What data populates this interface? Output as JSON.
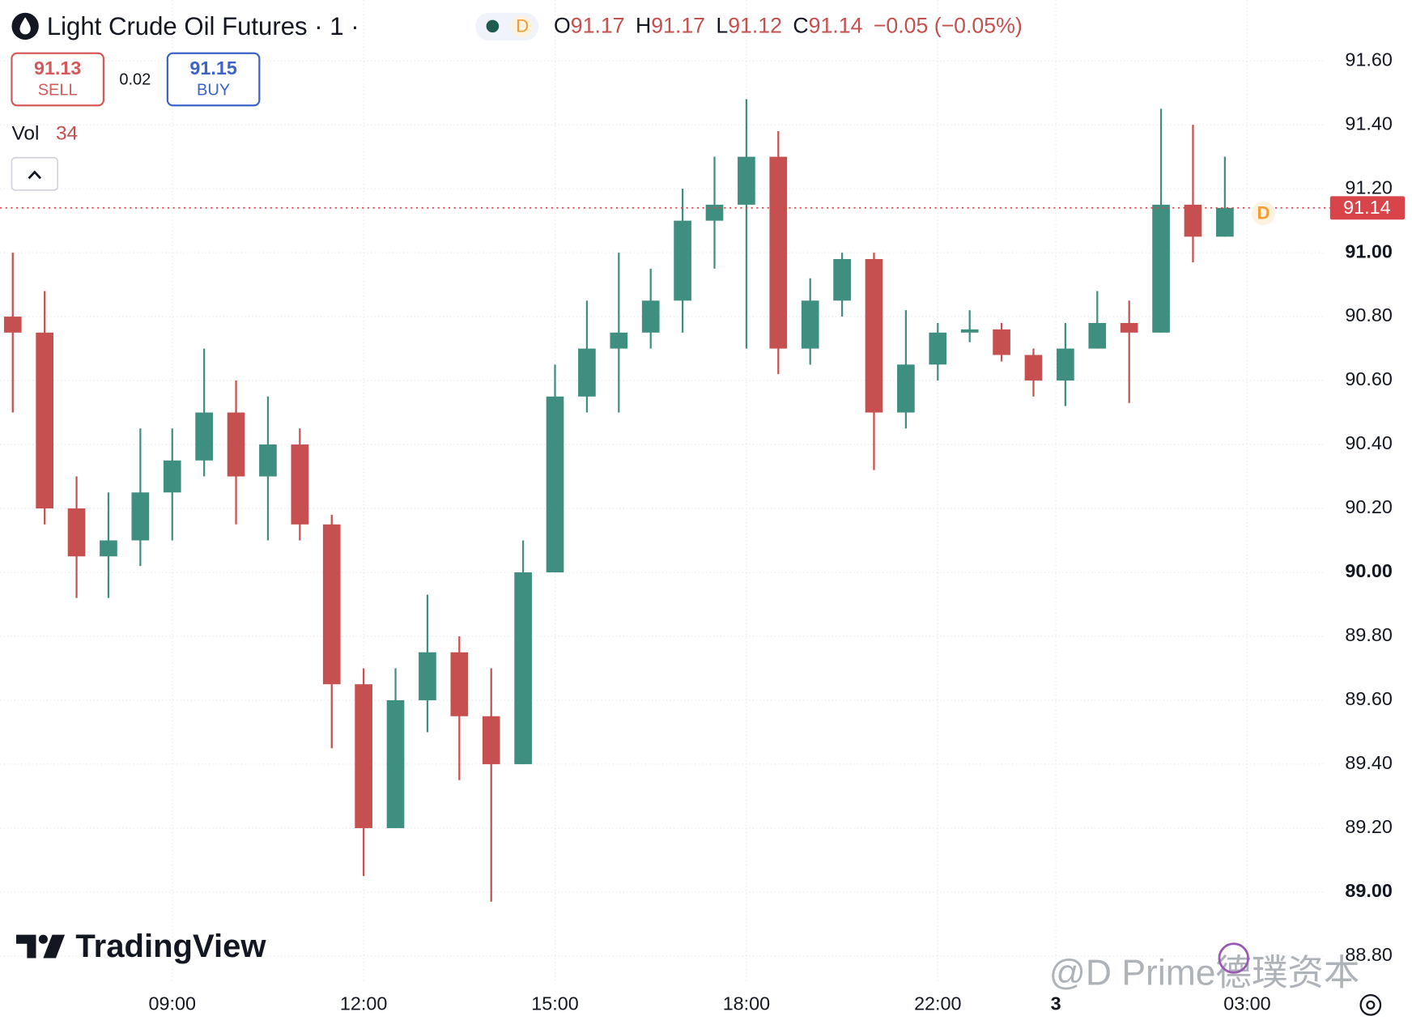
{
  "header": {
    "symbol": "Light Crude Oil Futures · 1 ·",
    "interval_badge": "D",
    "ohlc": [
      {
        "label": "O",
        "value": "91.17"
      },
      {
        "label": "H",
        "value": "91.17"
      },
      {
        "label": "L",
        "value": "91.12"
      },
      {
        "label": "C",
        "value": "91.14"
      }
    ],
    "change": "−0.05 (−0.05%)"
  },
  "trade": {
    "sell_price": "91.13",
    "sell_label": "SELL",
    "spread": "0.02",
    "buy_price": "91.15",
    "buy_label": "BUY"
  },
  "volume": {
    "label": "Vol",
    "value": "34"
  },
  "watermark": "TradingView",
  "credit": "@D Prime德璞资本",
  "chart_data": {
    "type": "candlestick",
    "up_color": "#3f8f80",
    "down_color": "#c6504f",
    "grid": true,
    "last_price": 91.14,
    "last_price_color": "#d9434a",
    "xlim": [
      -0.4,
      41.1
    ],
    "xticks": [
      {
        "value": 5,
        "label": "09:00"
      },
      {
        "value": 11,
        "label": "12:00"
      },
      {
        "value": 17,
        "label": "15:00"
      },
      {
        "value": 23,
        "label": "18:00"
      },
      {
        "value": 29,
        "label": "22:00"
      },
      {
        "value": 32.7,
        "label": "3"
      },
      {
        "value": 38.7,
        "label": "03:00"
      }
    ],
    "ylim": [
      88.72,
      91.79
    ],
    "yticks": [
      {
        "value": 88.8,
        "label": "88.80"
      },
      {
        "value": 89,
        "label": "89.00"
      },
      {
        "value": 89.2,
        "label": "89.20"
      },
      {
        "value": 89.4,
        "label": "89.40"
      },
      {
        "value": 89.6,
        "label": "89.60"
      },
      {
        "value": 89.8,
        "label": "89.80"
      },
      {
        "value": 90,
        "label": "90.00"
      },
      {
        "value": 90.2,
        "label": "90.20"
      },
      {
        "value": 90.4,
        "label": "90.40"
      },
      {
        "value": 90.6,
        "label": "90.60"
      },
      {
        "value": 90.8,
        "label": "90.80"
      },
      {
        "value": 91,
        "label": "91.00"
      },
      {
        "value": 91.2,
        "label": "91.20"
      },
      {
        "value": 91.4,
        "label": "91.40"
      },
      {
        "value": 91.6,
        "label": "91.60"
      }
    ],
    "open": [
      90.8,
      90.75,
      90.2,
      90.05,
      90.1,
      90.25,
      90.35,
      90.5,
      90.3,
      90.4,
      90.15,
      89.65,
      89.2,
      89.6,
      89.75,
      89.55,
      89.4,
      90.0,
      90.55,
      90.7,
      90.75,
      90.85,
      91.1,
      91.15,
      91.3,
      90.7,
      90.85,
      90.98,
      90.5,
      90.65,
      90.75,
      90.76,
      90.68,
      90.6,
      90.7,
      90.78,
      90.75,
      91.15,
      91.05
    ],
    "high": [
      91.0,
      90.88,
      90.3,
      90.25,
      90.45,
      90.45,
      90.7,
      90.6,
      90.55,
      90.45,
      90.18,
      89.7,
      89.7,
      89.93,
      89.8,
      89.7,
      90.1,
      90.65,
      90.85,
      91.0,
      90.95,
      91.2,
      91.3,
      91.48,
      91.38,
      90.92,
      91.0,
      91.0,
      90.82,
      90.78,
      90.82,
      90.78,
      90.7,
      90.78,
      90.88,
      90.85,
      91.45,
      91.4,
      91.3
    ],
    "low": [
      90.5,
      90.15,
      89.92,
      89.92,
      90.02,
      90.1,
      90.3,
      90.15,
      90.1,
      90.1,
      89.45,
      89.05,
      89.2,
      89.5,
      89.35,
      88.97,
      89.4,
      90.0,
      90.5,
      90.5,
      90.7,
      90.75,
      90.95,
      90.7,
      90.62,
      90.65,
      90.8,
      90.32,
      90.45,
      90.6,
      90.72,
      90.66,
      90.55,
      90.52,
      90.7,
      90.53,
      90.75,
      90.97,
      91.05
    ],
    "close": [
      90.75,
      90.2,
      90.05,
      90.1,
      90.25,
      90.35,
      90.5,
      90.3,
      90.4,
      90.15,
      89.65,
      89.2,
      89.6,
      89.75,
      89.55,
      89.4,
      90.0,
      90.55,
      90.7,
      90.75,
      90.85,
      91.1,
      91.15,
      91.3,
      90.7,
      90.85,
      90.98,
      90.5,
      90.65,
      90.75,
      90.76,
      90.68,
      90.6,
      90.7,
      90.78,
      90.75,
      91.15,
      91.05,
      91.14
    ]
  }
}
